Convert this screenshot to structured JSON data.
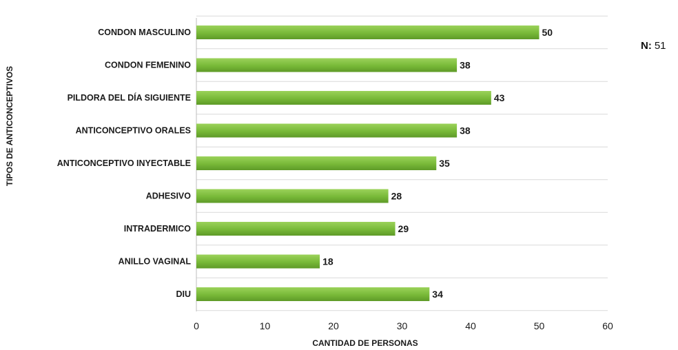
{
  "note": {
    "label": "N:",
    "value": "51"
  },
  "colors": {
    "bar": "#7dbf3a",
    "bar_dark": "#5e9a28",
    "grid": "#d9d9d9"
  },
  "chart_data": {
    "type": "bar",
    "orientation": "horizontal",
    "categories": [
      "CONDON MASCULINO",
      "CONDON FEMENINO",
      "PILDORA DEL DÍA SIGUIENTE",
      "ANTICONCEPTIVO ORALES",
      "ANTICONCEPTIVO INYECTABLE",
      "ADHESIVO",
      "INTRADERMICO",
      "ANILLO VAGINAL",
      "DIU"
    ],
    "values": [
      50,
      38,
      43,
      38,
      35,
      28,
      29,
      18,
      34
    ],
    "xlabel": "CANTIDAD DE PERSONAS",
    "ylabel": "TIPOS DE ANTICONCEPTIVOS",
    "xlim": [
      0,
      60
    ],
    "xticks": [
      "0",
      "10",
      "20",
      "30",
      "40",
      "50",
      "60"
    ],
    "grid": true,
    "legend": "none"
  }
}
